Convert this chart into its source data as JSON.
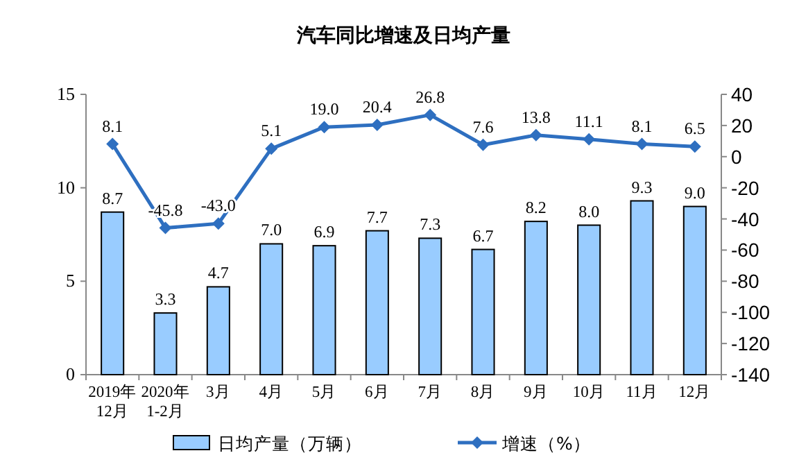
{
  "chart_data": {
    "type": "bar",
    "title": "汽车同比增速及日均产量",
    "categories": [
      "2019年\n12月",
      "2020年\n1-2月",
      "3月",
      "4月",
      "5月",
      "6月",
      "7月",
      "8月",
      "9月",
      "10月",
      "11月",
      "12月"
    ],
    "series": [
      {
        "name": "日均产量（万辆）",
        "color": "#99ccff",
        "values": [
          8.7,
          3.3,
          4.7,
          7.0,
          6.9,
          7.7,
          7.3,
          6.7,
          8.2,
          8.0,
          9.3,
          9.0
        ],
        "value_labels": [
          "8.7",
          "3.3",
          "4.7",
          "7.0",
          "6.9",
          "7.7",
          "7.3",
          "6.7",
          "8.2",
          "8.0",
          "9.3",
          "9.0"
        ]
      },
      {
        "name": "增速（%）",
        "type": "line",
        "axis": "y2",
        "color": "#2e6fc0",
        "values": [
          8.1,
          -45.8,
          -43.0,
          5.1,
          19.0,
          20.4,
          26.8,
          7.6,
          13.8,
          11.1,
          8.1,
          6.5
        ],
        "value_labels": [
          "8.1",
          "-45.8",
          "-43.0",
          "5.1",
          "19.0",
          "20.4",
          "26.8",
          "7.6",
          "13.8",
          "11.1",
          "8.1",
          "6.5"
        ]
      }
    ],
    "ylim": [
      0,
      15
    ],
    "yticks": [
      0,
      5,
      10,
      15
    ],
    "y2lim": [
      -140,
      40
    ],
    "y2ticks": [
      -140,
      -120,
      -100,
      -80,
      -60,
      -40,
      -20,
      0,
      20,
      40
    ],
    "marker": "diamond",
    "legend": "bottom",
    "grid": false
  }
}
